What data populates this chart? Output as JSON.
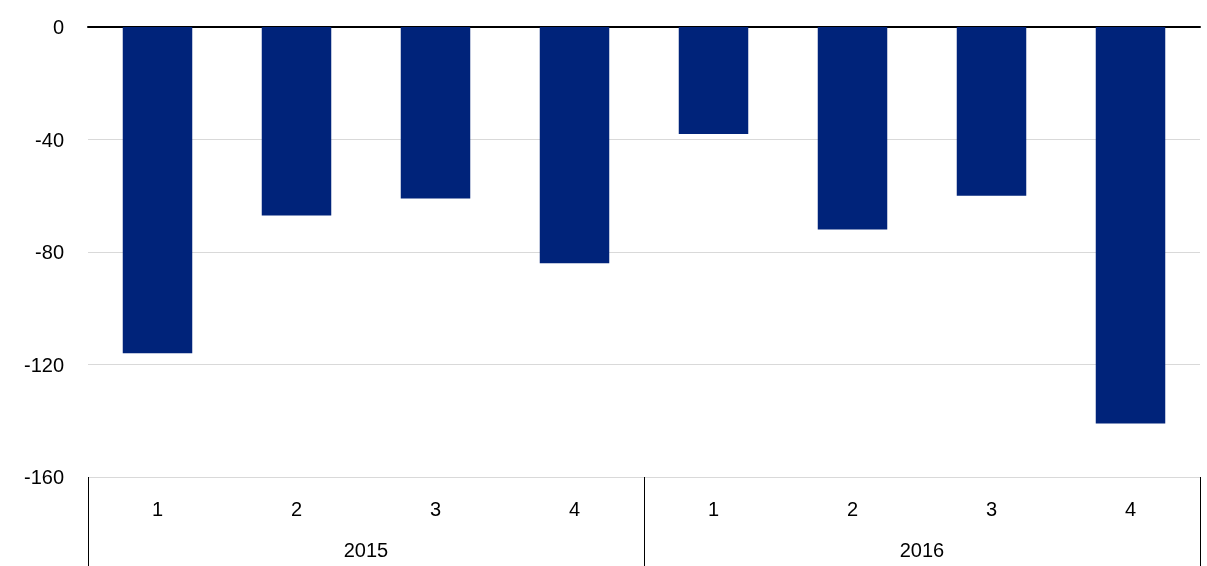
{
  "chart_data": {
    "type": "bar",
    "categories": [
      "1",
      "2",
      "3",
      "4",
      "1",
      "2",
      "3",
      "4"
    ],
    "values": [
      -116,
      -67,
      -61,
      -84,
      -38,
      -72,
      -60,
      -141
    ],
    "color": "#00237a",
    "ylim": [
      -160,
      0
    ],
    "yticks": [
      -160,
      -120,
      -80,
      -40,
      0
    ],
    "grid": "y",
    "annotations": [
      "2015",
      "2016"
    ]
  }
}
